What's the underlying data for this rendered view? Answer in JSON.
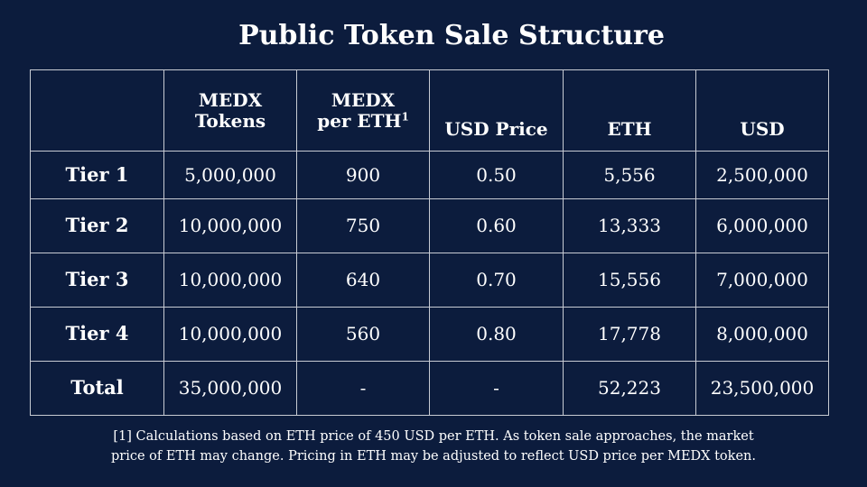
{
  "title": "Public Token Sale Structure",
  "table": {
    "headers": {
      "blank": "",
      "medx_tokens_line1": "MEDX",
      "medx_tokens_line2": "Tokens",
      "medx_per_eth_line1": "MEDX",
      "medx_per_eth_line2": "per ETH",
      "medx_per_eth_note": "1",
      "usd_price": "USD Price",
      "eth": "ETH",
      "usd": "USD"
    },
    "rows": [
      {
        "label": "Tier 1",
        "medx_tokens": "5,000,000",
        "medx_per_eth": "900",
        "usd_price": "0.50",
        "eth": "5,556",
        "usd": "2,500,000"
      },
      {
        "label": "Tier 2",
        "medx_tokens": "10,000,000",
        "medx_per_eth": "750",
        "usd_price": "0.60",
        "eth": "13,333",
        "usd": "6,000,000"
      },
      {
        "label": "Tier 3",
        "medx_tokens": "10,000,000",
        "medx_per_eth": "640",
        "usd_price": "0.70",
        "eth": "15,556",
        "usd": "7,000,000"
      },
      {
        "label": "Tier 4",
        "medx_tokens": "10,000,000",
        "medx_per_eth": "560",
        "usd_price": "0.80",
        "eth": "17,778",
        "usd": "8,000,000"
      },
      {
        "label": "Total",
        "medx_tokens": "35,000,000",
        "medx_per_eth": "-",
        "usd_price": "-",
        "eth": "52,223",
        "usd": "23,500,000"
      }
    ]
  },
  "footnote": {
    "line1": "[1] Calculations based on ETH price of 450 USD per ETH. As token sale approaches, the market",
    "line2": "price of ETH may change.  Pricing in ETH may be adjusted to reflect USD price per MEDX token."
  },
  "colors": {
    "background": "#0c1c3d",
    "text": "#ffffff",
    "grid": "#c7cbd3"
  }
}
